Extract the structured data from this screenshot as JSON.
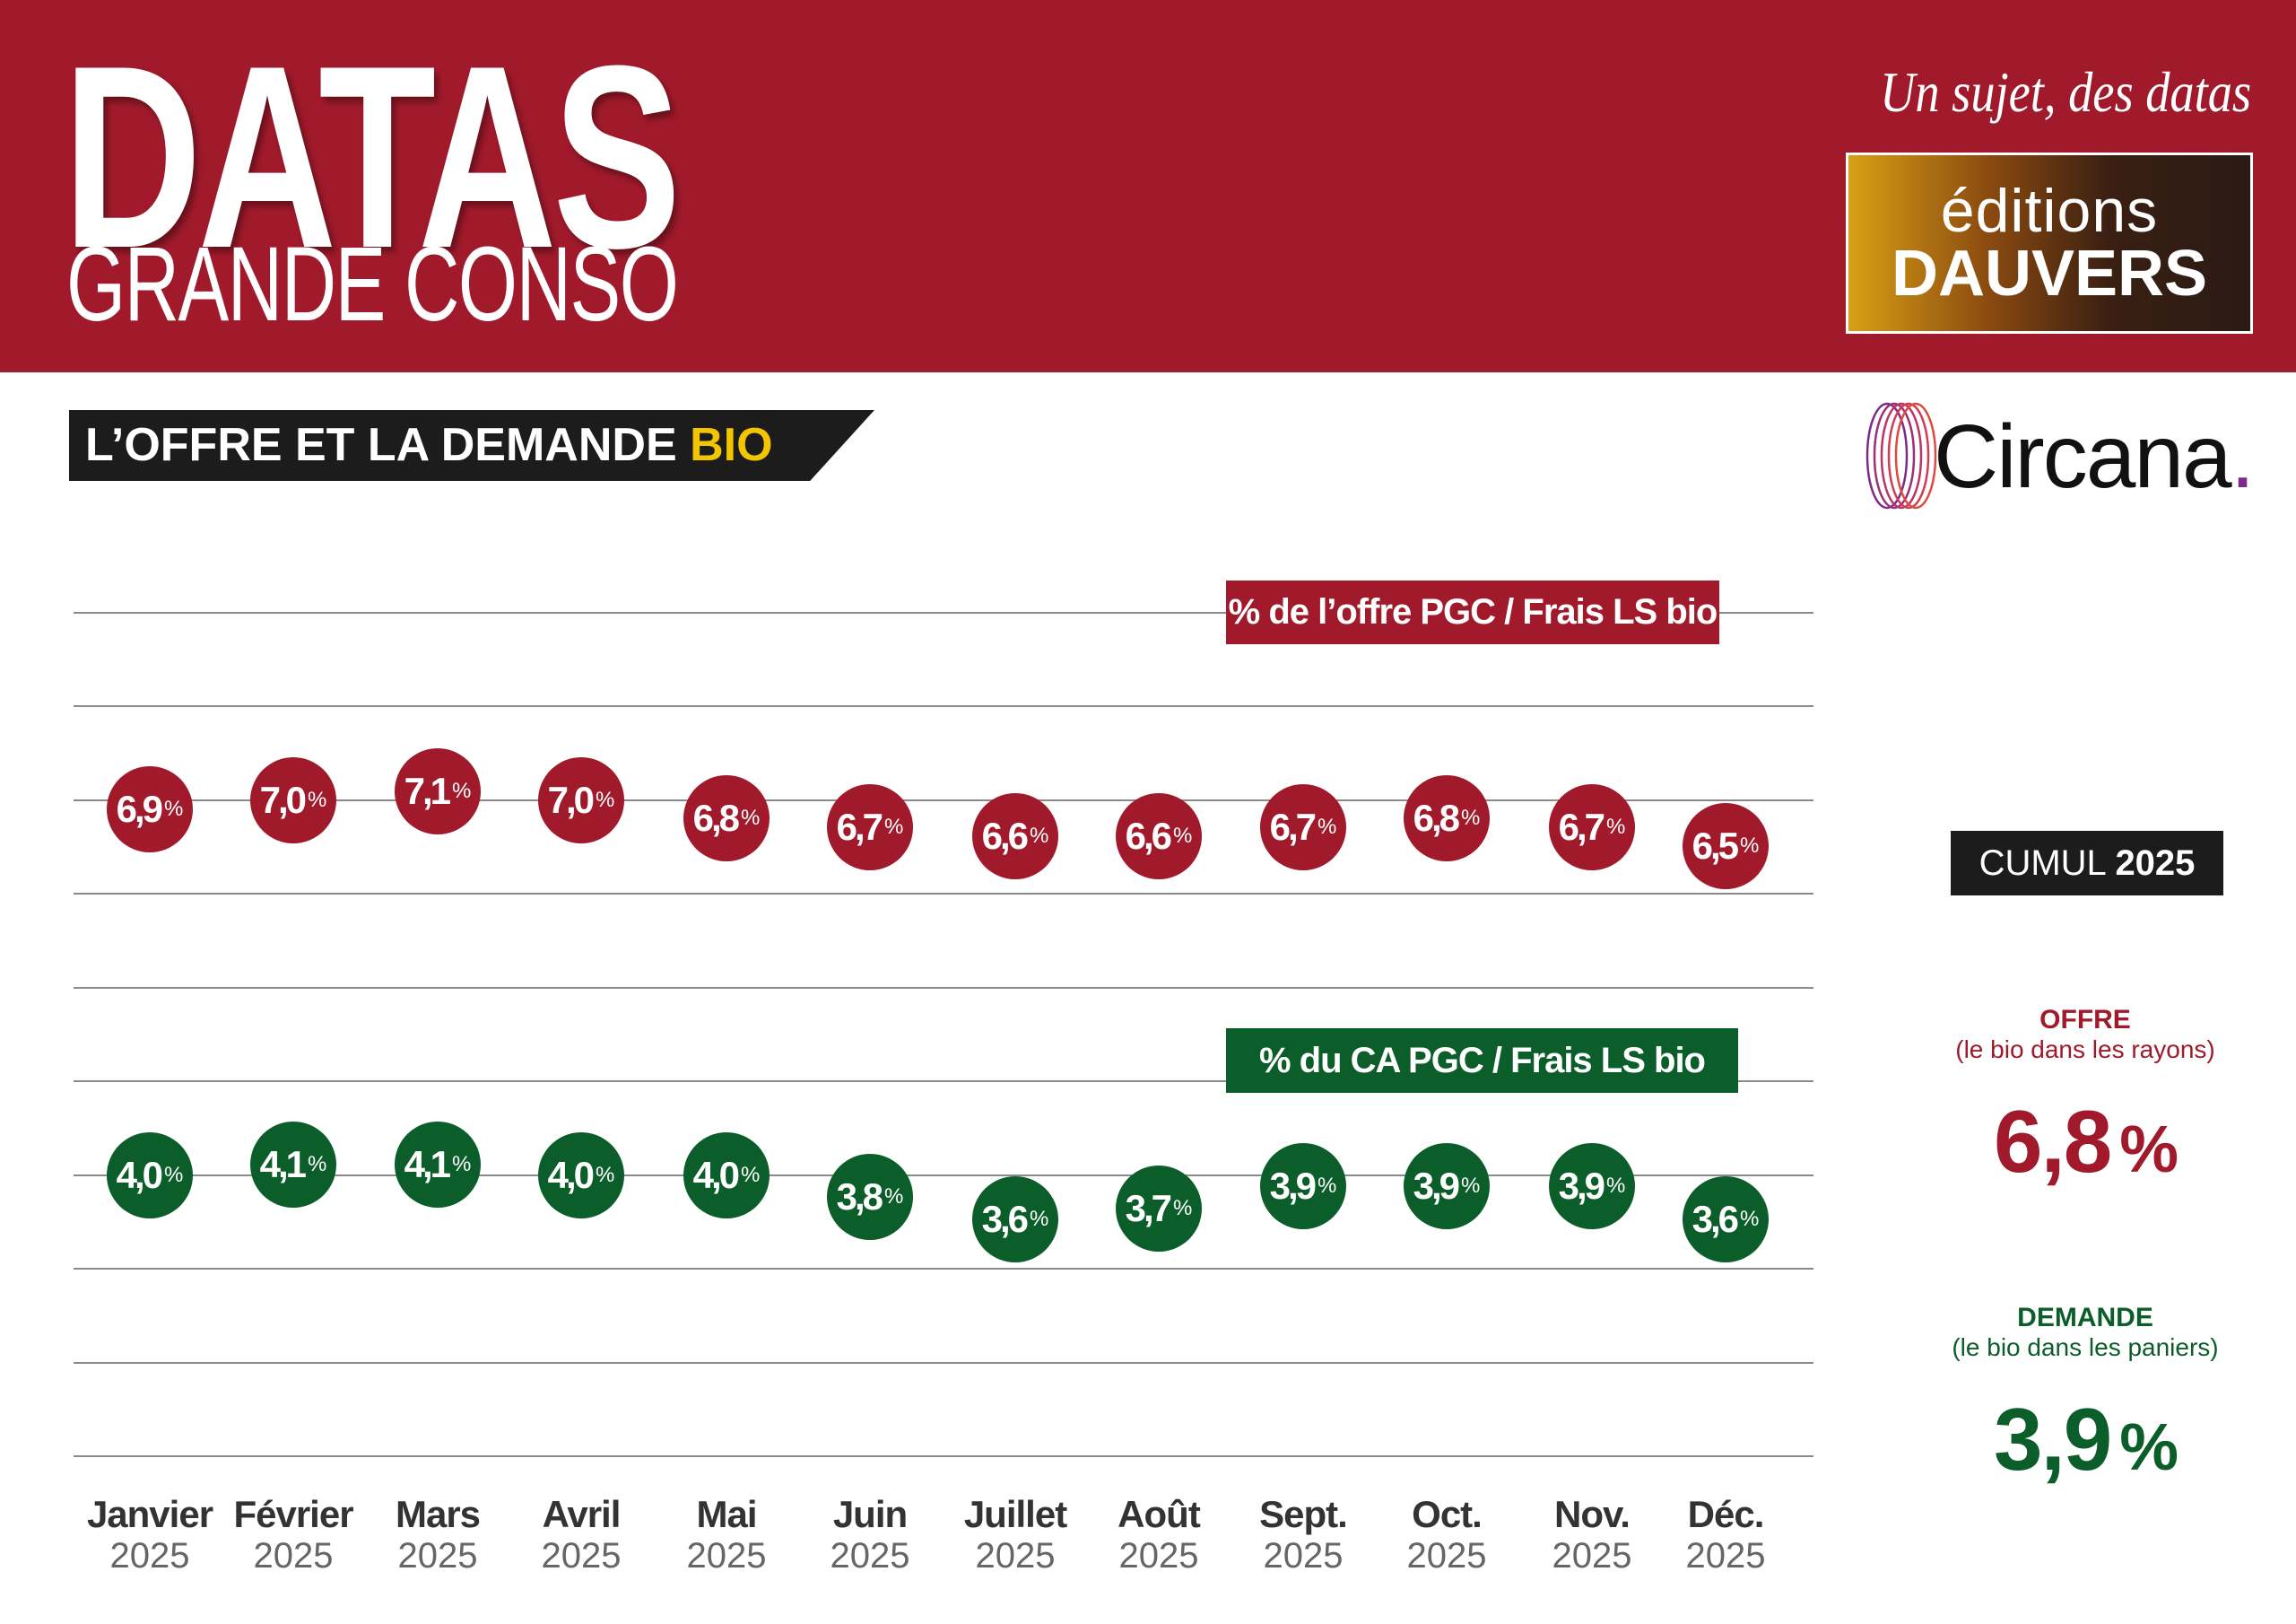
{
  "header": {
    "title": "DATAS",
    "subtitle": "GRANDE CONSO",
    "tagline": "Un sujet, des datas",
    "publisher_line1": "éditions",
    "publisher_line2": "DAUVERS"
  },
  "banner": {
    "text": "L’OFFRE ET LA DEMANDE",
    "highlight": "BIO"
  },
  "source_logo": "Circana",
  "colors": {
    "header": "#a01a2b",
    "offre": "#a01a2b",
    "demande": "#0b5e2a",
    "highlight": "#f2c500"
  },
  "chart_data": {
    "type": "scatter",
    "title": "L’OFFRE ET LA DEMANDE BIO",
    "categories": [
      {
        "month": "Janvier",
        "year": "2025"
      },
      {
        "month": "Février",
        "year": "2025"
      },
      {
        "month": "Mars",
        "year": "2025"
      },
      {
        "month": "Avril",
        "year": "2025"
      },
      {
        "month": "Mai",
        "year": "2025"
      },
      {
        "month": "Juin",
        "year": "2025"
      },
      {
        "month": "Juillet",
        "year": "2025"
      },
      {
        "month": "Août",
        "year": "2025"
      },
      {
        "month": "Sept.",
        "year": "2025"
      },
      {
        "month": "Oct.",
        "year": "2025"
      },
      {
        "month": "Nov.",
        "year": "2025"
      },
      {
        "month": "Déc.",
        "year": "2025"
      }
    ],
    "series": [
      {
        "name": "% de l’offre PGC / Frais LS bio",
        "values": [
          6.9,
          7.0,
          7.1,
          7.0,
          6.8,
          6.7,
          6.6,
          6.6,
          6.7,
          6.8,
          6.7,
          6.5
        ],
        "labels": [
          "6,9",
          "7,0",
          "7,1",
          "7,0",
          "6,8",
          "6,7",
          "6,6",
          "6,6",
          "6,7",
          "6,8",
          "6,7",
          "6,5"
        ]
      },
      {
        "name": "% du CA PGC / Frais LS bio",
        "values": [
          4.0,
          4.1,
          4.1,
          4.0,
          4.0,
          3.8,
          3.6,
          3.7,
          3.9,
          3.9,
          3.9,
          3.6
        ],
        "labels": [
          "4,0",
          "4,1",
          "4,1",
          "4,0",
          "4,0",
          "3,8",
          "3,6",
          "3,7",
          "3,9",
          "3,9",
          "3,9",
          "3,6"
        ]
      }
    ],
    "unit": "%",
    "grid": true
  },
  "cumul": {
    "label": "CUMUL",
    "year": "2025",
    "offre": {
      "title": "OFFRE",
      "subtitle": "(le bio dans les rayons)",
      "value": "6,8",
      "unit": "%"
    },
    "demande": {
      "title": "DEMANDE",
      "subtitle": "(le bio dans les paniers)",
      "value": "3,9",
      "unit": "%"
    }
  }
}
